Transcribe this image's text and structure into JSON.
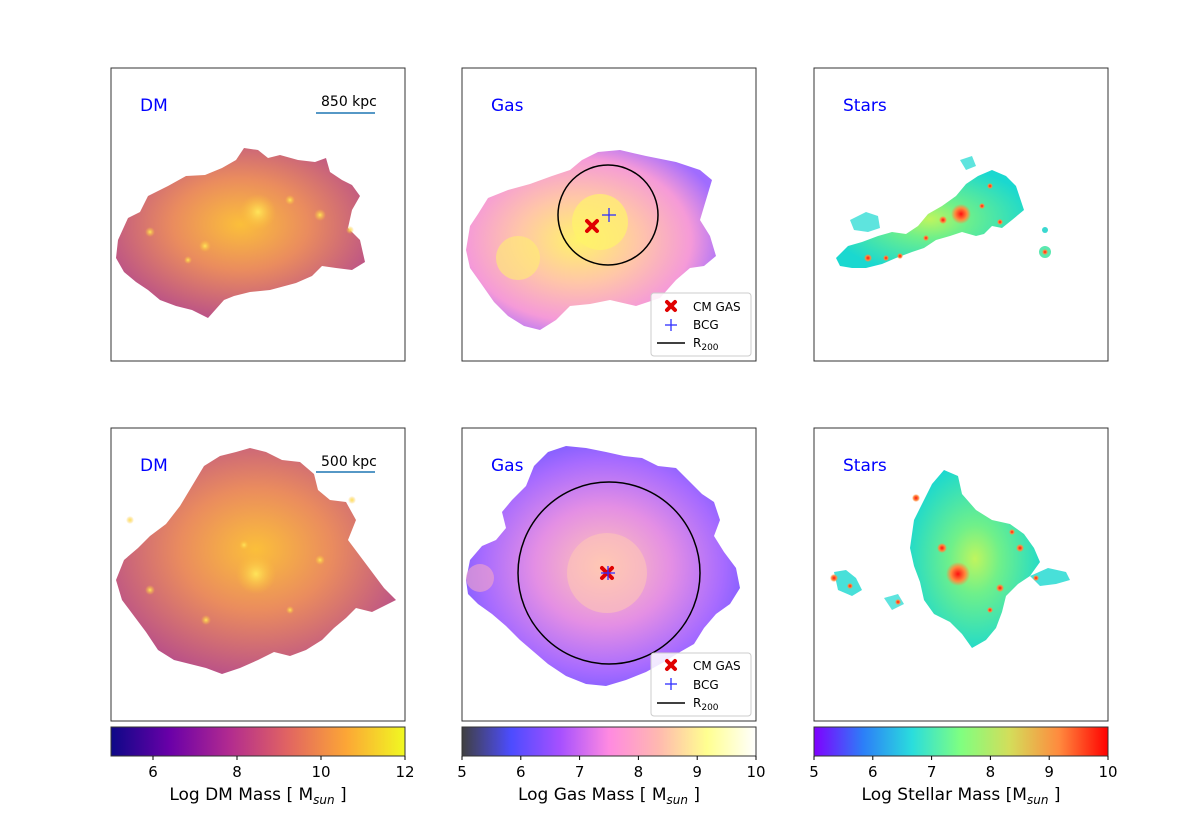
{
  "panels": {
    "r0c0": {
      "label": "DM",
      "scale": "850 kpc",
      "colors": {
        "lo": "#b34a8c",
        "mid": "#e98a5f",
        "hi": "#fbbf3a"
      }
    },
    "r0c1": {
      "label": "Gas",
      "colors": {
        "lo": "#9a6bff",
        "mid": "#f59ad8",
        "hi": "#fff36a"
      }
    },
    "r0c2": {
      "label": "Stars",
      "colors": {
        "lo": "#1ad8d0",
        "mid": "#8cf27a",
        "hi": "#ff2020"
      }
    },
    "r1c0": {
      "label": "DM",
      "scale": "500 kpc",
      "colors": {
        "lo": "#b34a8c",
        "mid": "#e98a5f",
        "hi": "#fbbf3a"
      }
    },
    "r1c1": {
      "label": "Gas",
      "colors": {
        "lo": "#8a66ff",
        "mid": "#e58fe6",
        "hi": "#ffc4b8"
      }
    },
    "r1c2": {
      "label": "Stars",
      "colors": {
        "lo": "#1ad8d0",
        "mid": "#8cf27a",
        "hi": "#ff2020"
      }
    }
  },
  "legend": {
    "cm_gas": "CM GAS",
    "bcg": "BCG",
    "r200_main": "R",
    "r200_sub": "200"
  },
  "colorbars": [
    {
      "label_pre": "Log DM Mass [ M",
      "label_sub": "sun",
      "label_post": " ]",
      "ticks": [
        "6",
        "8",
        "10",
        "12"
      ],
      "range": [
        5,
        12
      ],
      "gradient": [
        "#0d0887",
        "#6a00a8",
        "#b12a90",
        "#e16462",
        "#fca636",
        "#f0f921"
      ]
    },
    {
      "label_pre": "Log Gas Mass [ M",
      "label_sub": "sun",
      "label_post": " ]",
      "ticks": [
        "5",
        "6",
        "7",
        "8",
        "9",
        "10"
      ],
      "range": [
        5,
        10
      ],
      "gradient": [
        "#404040",
        "#4c4cff",
        "#a650ff",
        "#ff8ae1",
        "#ffb8b0",
        "#ffff90",
        "#ffffff"
      ]
    },
    {
      "label_pre": "Log Stellar Mass [M",
      "label_sub": "sun",
      "label_post": " ]",
      "ticks": [
        "5",
        "6",
        "7",
        "8",
        "9",
        "10"
      ],
      "range": [
        5,
        10
      ],
      "gradient": [
        "#8000ff",
        "#2c7ef8",
        "#2adddd",
        "#80ff80",
        "#d4dd5a",
        "#ff8a3e",
        "#ff0000"
      ]
    }
  ]
}
